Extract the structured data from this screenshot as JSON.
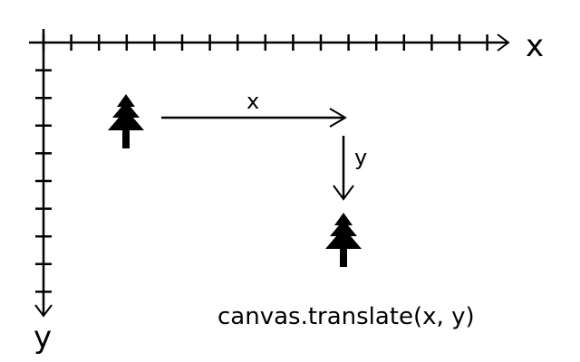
{
  "axes": {
    "x_label": "x",
    "y_label": "y",
    "x_tick_count": 17,
    "y_tick_count": 9
  },
  "arrows": {
    "horizontal_label": "x",
    "vertical_label": "y"
  },
  "caption": "canvas.translate(x, y)",
  "icons": {
    "origin_tree": "tree-icon",
    "translated_tree": "tree-icon"
  },
  "colors": {
    "ink": "#000000",
    "background": "#ffffff"
  }
}
